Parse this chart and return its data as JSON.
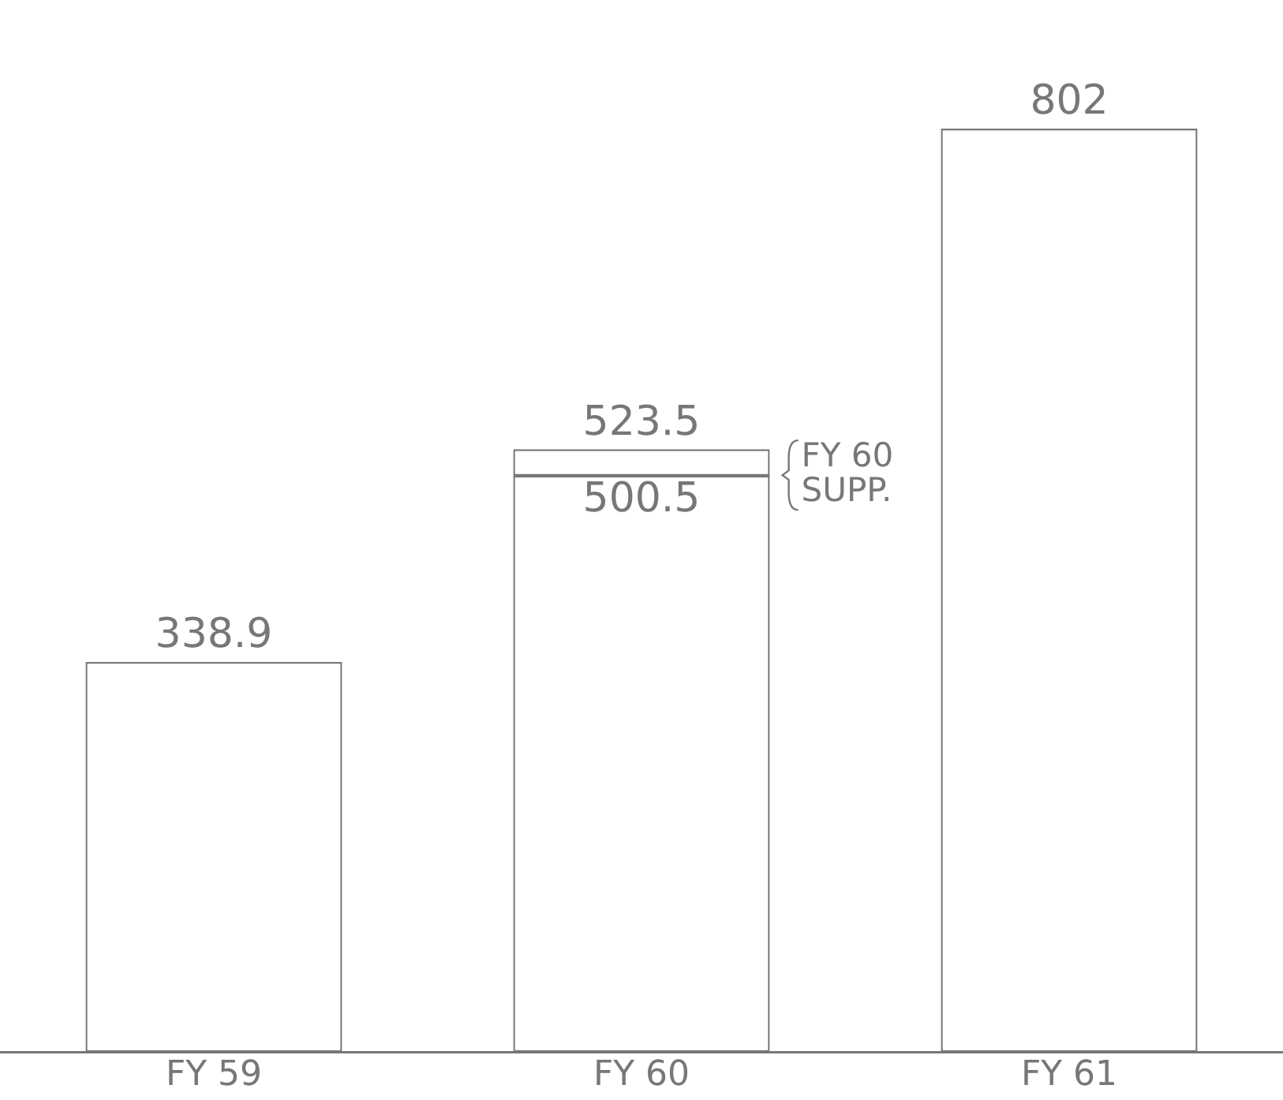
{
  "chart_data": {
    "type": "bar",
    "stacked": true,
    "categories": [
      "FY 59",
      "FY 60",
      "FY 61"
    ],
    "series": [
      {
        "color": "#ffffff",
        "values": [
          338.9,
          500.5,
          802
        ],
        "value_labels": [
          "338.9",
          "500.5",
          "802"
        ]
      },
      {
        "name": "FY 60 SUPP.",
        "color": "#ffffff",
        "values": [
          null,
          23,
          null
        ]
      }
    ],
    "totals": [
      null,
      "523.5",
      null
    ],
    "grid": false,
    "legend": false
  }
}
